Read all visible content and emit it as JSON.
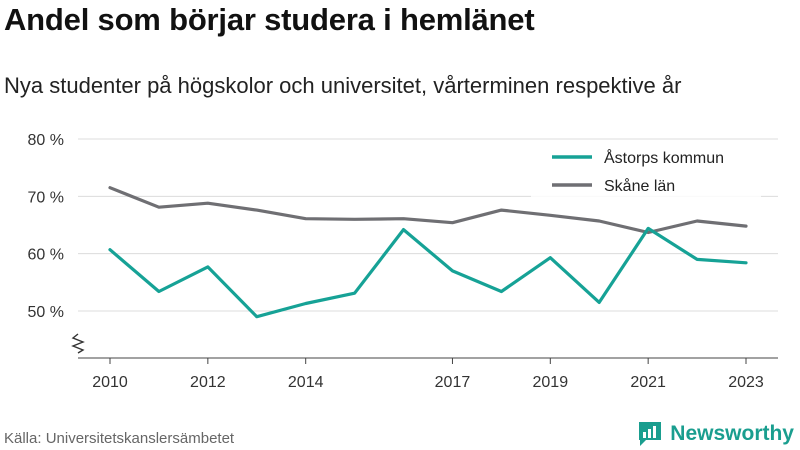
{
  "title": "Andel som börjar studera i hemlänet",
  "subtitle": "Nya studenter på högskolor och universitet, vårterminen respektive år",
  "source": "Källa: Universitetskanslersämbetet",
  "brand": {
    "name": "Newsworthy",
    "icon": "newsworthy-logo-icon",
    "color": "#1a9e8f"
  },
  "chart_data": {
    "type": "line",
    "title": "",
    "xlabel": "",
    "ylabel": "",
    "x": [
      2010,
      2011,
      2012,
      2013,
      2014,
      2015,
      2016,
      2017,
      2018,
      2019,
      2020,
      2021,
      2022,
      2023
    ],
    "x_tick_labels": [
      "2010",
      "2012",
      "2014",
      "2017",
      "2019",
      "2021",
      "2023"
    ],
    "y_ticks": [
      50,
      60,
      70,
      80
    ],
    "y_tick_labels": [
      "50 %",
      "60 %",
      "70 %",
      "80 %"
    ],
    "ylim": [
      50,
      80
    ],
    "y_axis_break": true,
    "grid": "horizontal",
    "legend_position": "top-right",
    "series": [
      {
        "name": "Åstorps kommun",
        "color": "#16a296",
        "values": [
          60.7,
          53.4,
          57.7,
          49.0,
          51.3,
          53.1,
          64.2,
          57.0,
          53.4,
          59.3,
          51.5,
          64.4,
          59.0,
          58.4
        ]
      },
      {
        "name": "Skåne län",
        "color": "#6f6f73",
        "values": [
          71.5,
          68.1,
          68.8,
          67.6,
          66.1,
          66.0,
          66.1,
          65.4,
          67.6,
          66.7,
          65.7,
          63.7,
          65.7,
          64.8
        ]
      }
    ]
  }
}
